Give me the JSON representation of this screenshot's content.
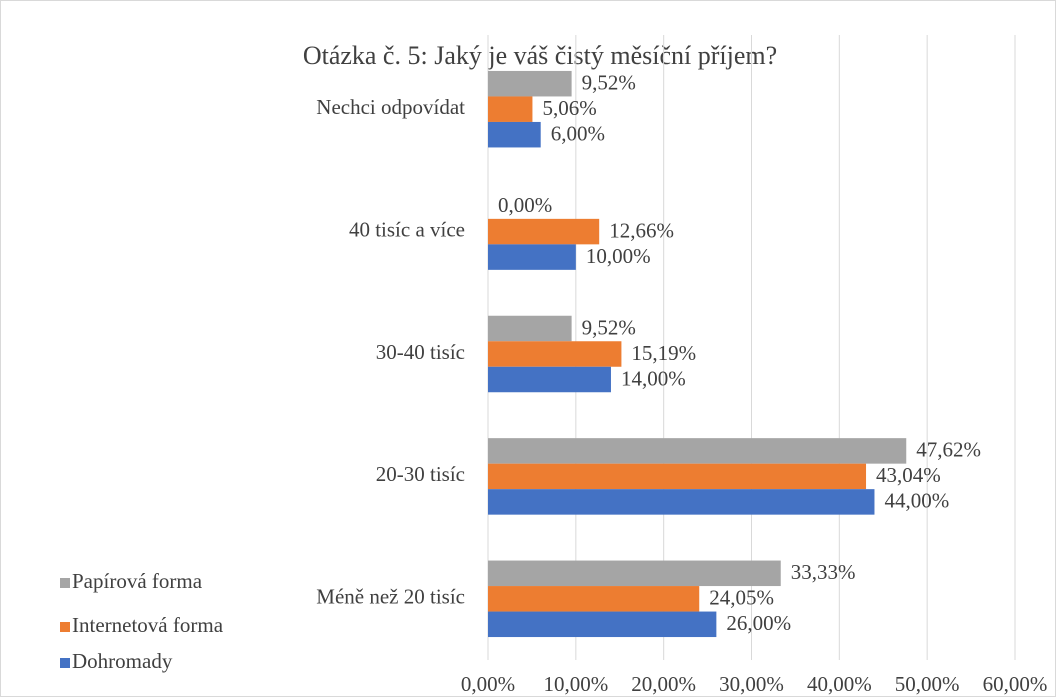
{
  "chart_data": {
    "type": "hbar",
    "title": "Otázka č. 5: Jaký je váš čistý měsíční příjem?",
    "categories": [
      "Nechci odpovídat",
      "40 tisíc a více",
      "30-40 tisíc",
      "20-30 tisíc",
      "Méně než 20 tisíc"
    ],
    "series": [
      {
        "name": "Papírová forma",
        "color": "#a5a5a5",
        "values": [
          9.52,
          0,
          9.52,
          47.62,
          33.33
        ],
        "value_labels": [
          "9,52%",
          "0,00%",
          "9,52%",
          "47,62%",
          "33,33%"
        ]
      },
      {
        "name": "Internetová forma",
        "color": "#ed7d31",
        "values": [
          5.06,
          12.66,
          15.19,
          43.04,
          24.05
        ],
        "value_labels": [
          "5,06%",
          "12,66%",
          "15,19%",
          "43,04%",
          "24,05%"
        ]
      },
      {
        "name": "Dohromady",
        "color": "#4472c4",
        "values": [
          6.0,
          10.0,
          14.0,
          44.0,
          26.0
        ],
        "value_labels": [
          "6,00%",
          "10,00%",
          "14,00%",
          "44,00%",
          "26,00%"
        ]
      }
    ],
    "xlim": [
      0,
      60
    ],
    "xticks": [
      {
        "value": 0,
        "label": "0,00%"
      },
      {
        "value": 10,
        "label": "10,00%"
      },
      {
        "value": 20,
        "label": "20,00%"
      },
      {
        "value": 30,
        "label": "30,00%"
      },
      {
        "value": 40,
        "label": "40,00%"
      },
      {
        "value": 50,
        "label": "50,00%"
      },
      {
        "value": 60,
        "label": "60,00%"
      }
    ],
    "grid": true,
    "legend": "bottom-left"
  }
}
